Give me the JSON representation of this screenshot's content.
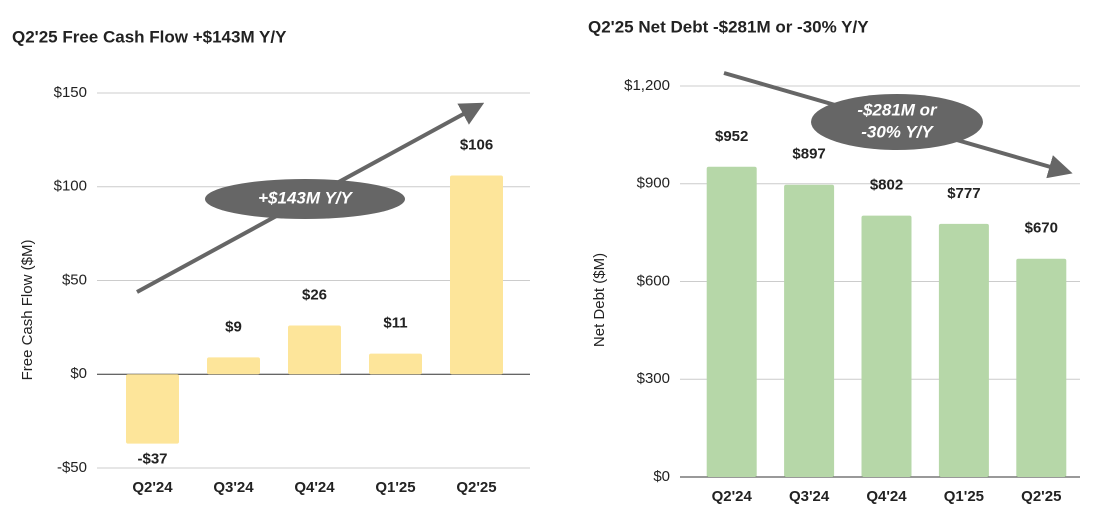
{
  "chart_data": [
    {
      "type": "bar",
      "title": "Q2'25 Free Cash Flow +$143M Y/Y",
      "y_label": "Free Cash Flow ($M)",
      "annotation": [
        "+$143M Y/Y"
      ],
      "categories": [
        "Q2'24",
        "Q3'24",
        "Q4'24",
        "Q1'25",
        "Q2'25"
      ],
      "values": [
        -37,
        9,
        26,
        11,
        106
      ],
      "value_labels": [
        "-$37",
        "$9",
        "$26",
        "$11",
        "$106"
      ],
      "color": "#fde59a",
      "ylim": [
        -50,
        150
      ],
      "yticks": [
        {
          "value": -50,
          "label": "-$50"
        },
        {
          "value": 0,
          "label": "$0"
        },
        {
          "value": 50,
          "label": "$50"
        },
        {
          "value": 100,
          "label": "$100"
        },
        {
          "value": 150,
          "label": "$150"
        }
      ],
      "grid": true
    },
    {
      "type": "bar",
      "title": "Q2'25 Net Debt -$281M or -30% Y/Y",
      "y_label": "Net Debt ($M)",
      "annotation": [
        "-$281M or",
        "-30% Y/Y"
      ],
      "categories": [
        "Q2'24",
        "Q3'24",
        "Q4'24",
        "Q1'25",
        "Q2'25"
      ],
      "values": [
        952,
        897,
        802,
        777,
        670
      ],
      "value_labels": [
        "$952",
        "$897",
        "$802",
        "$777",
        "$670"
      ],
      "color": "#b6d7a8",
      "ylim": [
        0,
        1200
      ],
      "yticks": [
        {
          "value": 0,
          "label": "$0"
        },
        {
          "value": 300,
          "label": "$300"
        },
        {
          "value": 600,
          "label": "$600"
        },
        {
          "value": 900,
          "label": "$900"
        },
        {
          "value": 1200,
          "label": "$1,200"
        }
      ],
      "grid": true
    }
  ]
}
